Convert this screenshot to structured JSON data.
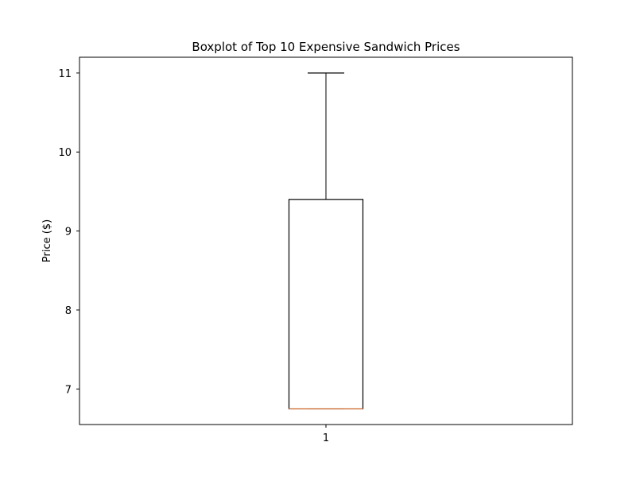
{
  "chart_data": {
    "type": "boxplot",
    "title": "Boxplot of Top 10 Expensive Sandwich Prices",
    "xlabel": "",
    "ylabel": "Price ($)",
    "categories": [
      "1"
    ],
    "boxes": [
      {
        "category": "1",
        "whisker_low": 6.75,
        "q1": 6.75,
        "median": 6.75,
        "q3": 9.4,
        "whisker_high": 11.0
      }
    ],
    "ylim": [
      6.55,
      11.2
    ],
    "yticks": [
      7,
      8,
      9,
      10,
      11
    ],
    "grid": false,
    "colors": {
      "box": "#000000",
      "median": "#dd8452"
    }
  }
}
